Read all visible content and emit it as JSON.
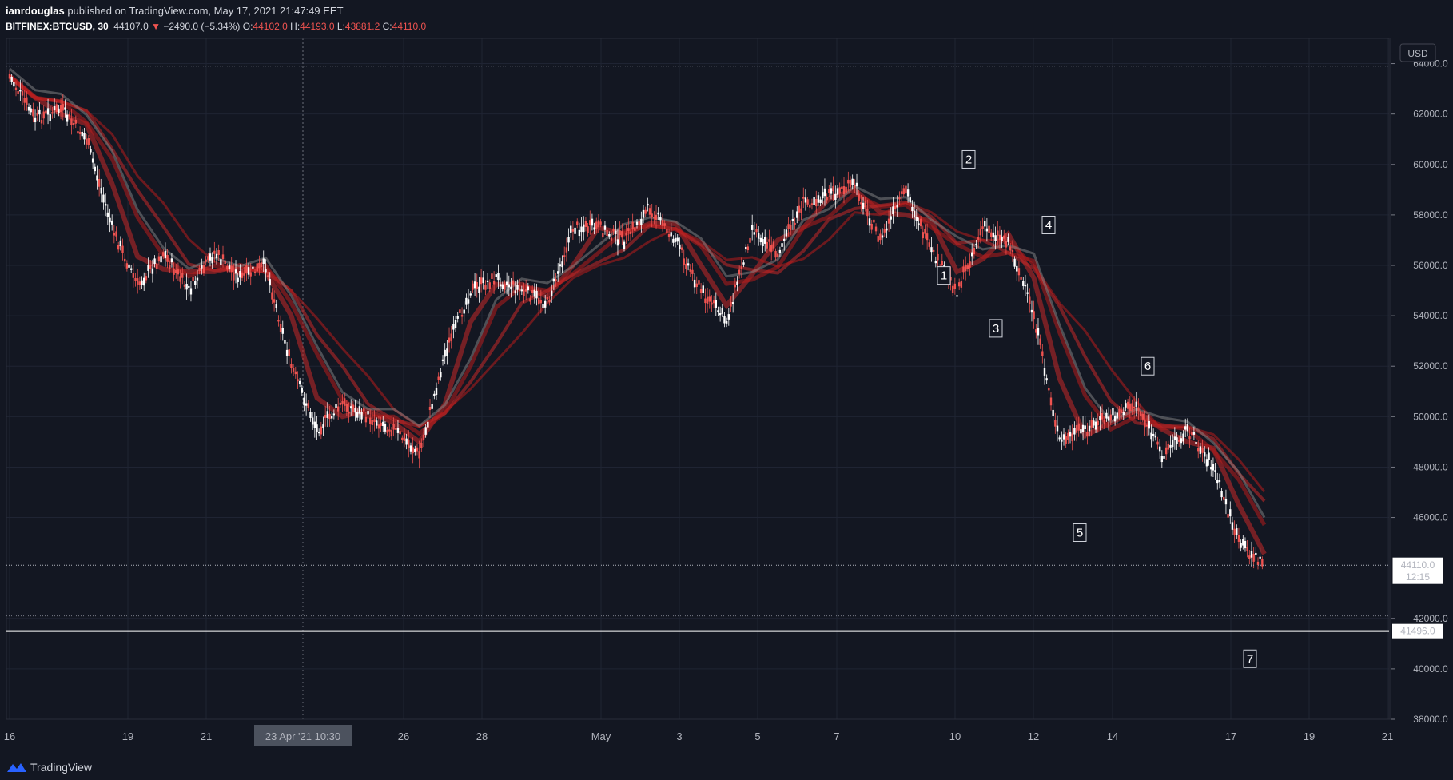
{
  "header": {
    "author": "ianrdouglas",
    "published_text": "published on TradingView.com, May 17, 2021 21:47:49 EET",
    "symbol": "BITFINEX:BTCUSD, 30",
    "last": "44107.0",
    "change": "−2490.0 (−5.34%)",
    "open_label": "O:",
    "open": "44102.0",
    "high_label": "H:",
    "high": "44193.0",
    "low_label": "L:",
    "low": "43881.2",
    "close_label": "C:",
    "close": "44110.0"
  },
  "footer": {
    "brand": "TradingView"
  },
  "colors": {
    "background": "#131722",
    "grid": "#1f2433",
    "candle_up": "#ffffff",
    "candle_down": "#ef5350",
    "ribbon_bull": "#8a8a8a",
    "ribbon_bear": "#b71c1c"
  },
  "chart_data": {
    "type": "line",
    "title": "BITFINEX:BTCUSD, 30",
    "currency": "USD",
    "ylim": [
      38000,
      65000
    ],
    "y_ticks": [
      "64000.0",
      "62000.0",
      "60000.0",
      "58000.0",
      "56000.0",
      "54000.0",
      "52000.0",
      "50000.0",
      "48000.0",
      "46000.0",
      "42000.0",
      "40000.0",
      "38000.0"
    ],
    "x_ticks": [
      "16",
      "19",
      "21",
      "26",
      "28",
      "May",
      "3",
      "5",
      "7",
      "10",
      "12",
      "14",
      "17",
      "19",
      "21"
    ],
    "crosshair_x_label": "23 Apr '21   10:30",
    "price_label": "44110.0",
    "countdown_label": "12:15",
    "horizontal_line_label": "41496.0",
    "horizontal_line_value": 41496,
    "dotted_line_value": 63900,
    "series": [
      {
        "x": [
          "Apr 16",
          "Apr 17",
          "Apr 17 12:00",
          "Apr 18",
          "Apr 18 06:00",
          "Apr 18 12:00",
          "Apr 19",
          "Apr 20",
          "Apr 21",
          "Apr 22",
          "Apr 22 12:00",
          "Apr 23",
          "Apr 23 12:00",
          "Apr 24",
          "Apr 25",
          "Apr 25 18:00",
          "Apr 26",
          "Apr 26 12:00",
          "Apr 27",
          "Apr 28",
          "Apr 29",
          "Apr 30",
          "May 1",
          "May 2",
          "May 3",
          "May 3 18:00",
          "May 4",
          "May 4 18:00",
          "May 5",
          "May 6",
          "May 7",
          "May 8",
          "May 9",
          "May 9 18:00",
          "May 10",
          "May 10 12:00",
          "May 11",
          "May 11 12:00",
          "May 12",
          "May 12 12:00",
          "May 13",
          "May 13 06:00",
          "May 13 12:00",
          "May 14",
          "May 15",
          "May 16",
          "May 16 18:00",
          "May 17",
          "May 17 12:00",
          "May 17 21:00"
        ],
        "values": [
          63500,
          61800,
          62200,
          61000,
          57500,
          55200,
          56500,
          55000,
          56500,
          55500,
          56000,
          52000,
          49500,
          50500,
          50000,
          49500,
          48500,
          52500,
          55000,
          55500,
          55000,
          54500,
          57500,
          57500,
          57000,
          58300,
          57000,
          55000,
          53800,
          57500,
          56500,
          58500,
          58800,
          59200,
          57000,
          59000,
          56500,
          55000,
          57500,
          57000,
          54000,
          49000,
          49500,
          50000,
          50500,
          48500,
          49500,
          48000,
          45000,
          44110
        ]
      }
    ]
  },
  "waves": [
    {
      "label": "1",
      "value": 55600
    },
    {
      "label": "2",
      "value": 60200
    },
    {
      "label": "3",
      "value": 53500
    },
    {
      "label": "4",
      "value": 57600
    },
    {
      "label": "5",
      "value": 45400
    },
    {
      "label": "6",
      "value": 52000
    },
    {
      "label": "7",
      "value": 40400
    }
  ]
}
